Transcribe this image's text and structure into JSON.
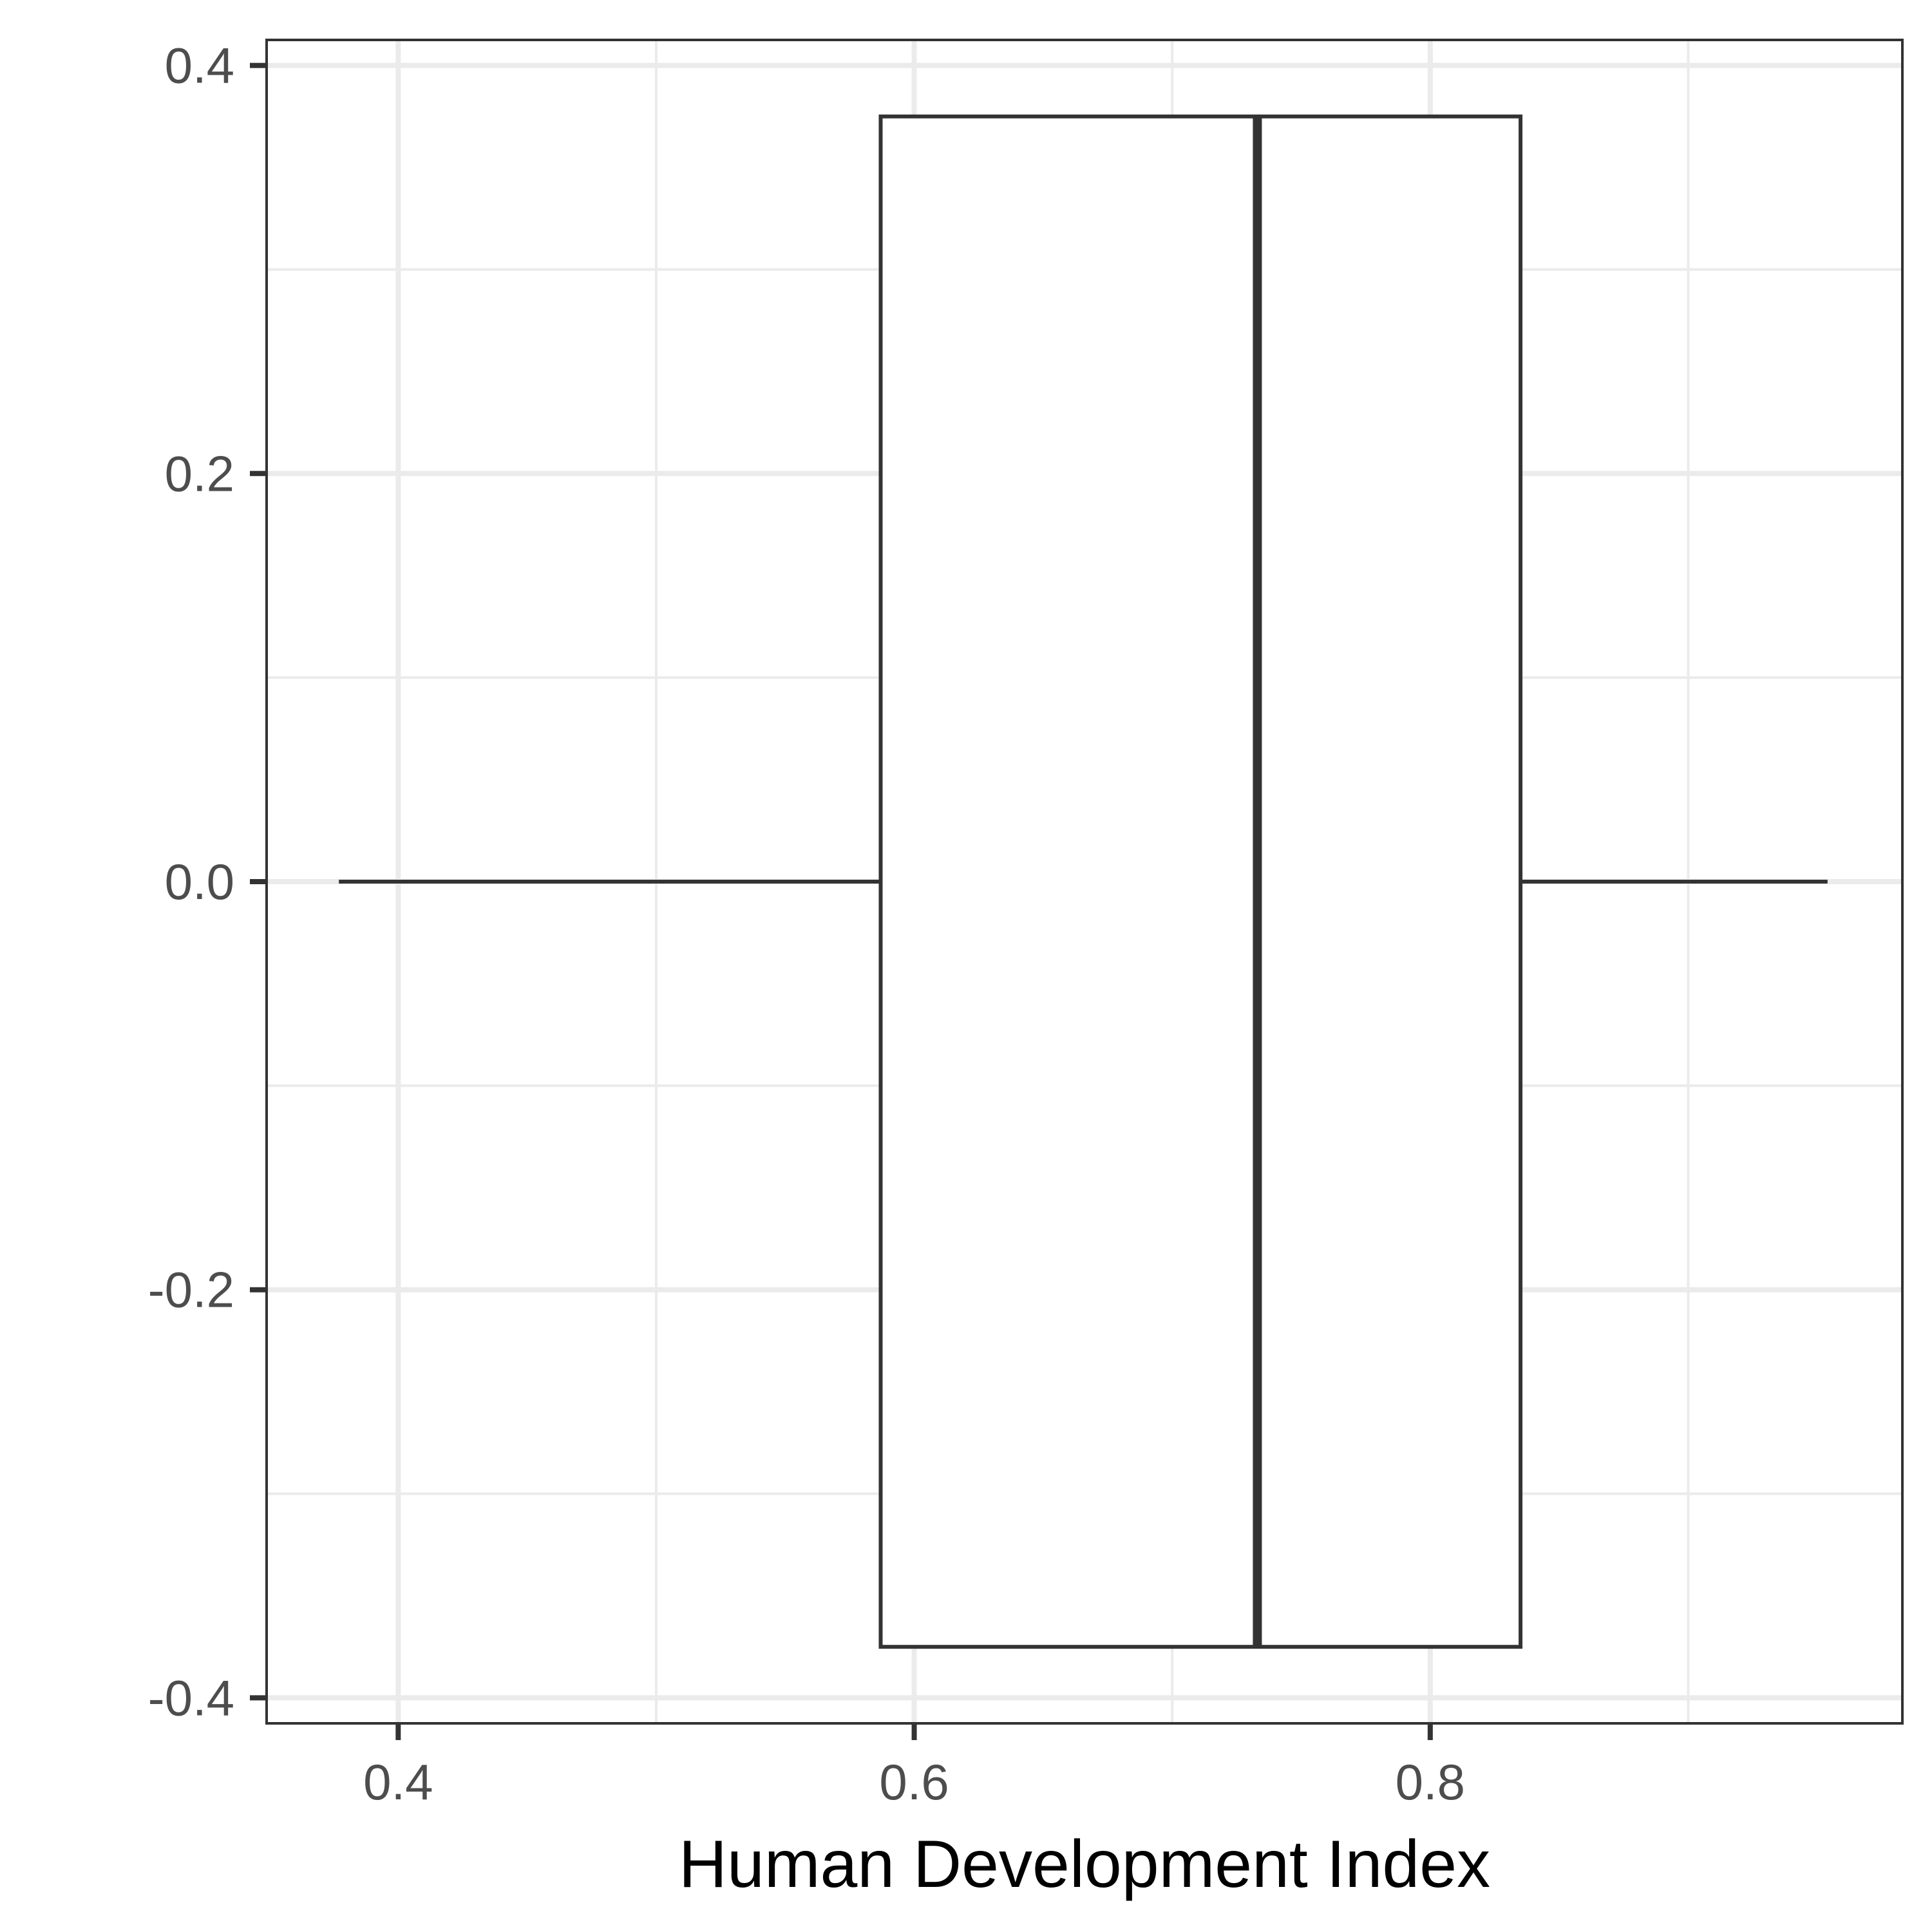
{
  "chart_data": {
    "type": "boxplot",
    "title": "",
    "xlabel": "Human Development Index",
    "ylabel": "",
    "xlim": [
      0.349,
      0.983
    ],
    "ylim": [
      -0.4125,
      0.4125
    ],
    "x_ticks": [
      {
        "value": 0.4,
        "label": "0.4"
      },
      {
        "value": 0.6,
        "label": "0.6"
      },
      {
        "value": 0.8,
        "label": "0.8"
      }
    ],
    "x_minor_ticks": [
      0.5,
      0.7,
      0.9
    ],
    "y_ticks": [
      {
        "value": 0.4,
        "label": "0.4"
      },
      {
        "value": 0.2,
        "label": "0.2"
      },
      {
        "value": 0.0,
        "label": "0.0"
      },
      {
        "value": -0.2,
        "label": "-0.2"
      },
      {
        "value": -0.4,
        "label": "-0.4"
      }
    ],
    "y_minor_ticks": [
      0.3,
      0.1,
      -0.1,
      -0.3
    ],
    "grid": true,
    "box": {
      "whisker_low": 0.377,
      "q1": 0.587,
      "median": 0.733,
      "q3": 0.835,
      "whisker_high": 0.954,
      "y_center": 0.0,
      "half_width": 0.375
    },
    "colors": {
      "box_stroke": "#333333",
      "box_fill": "#ffffff",
      "grid": "#ebebeb",
      "panel_border": "#333333",
      "tick_text": "#4d4d4d",
      "axis_title": "#000000"
    }
  }
}
